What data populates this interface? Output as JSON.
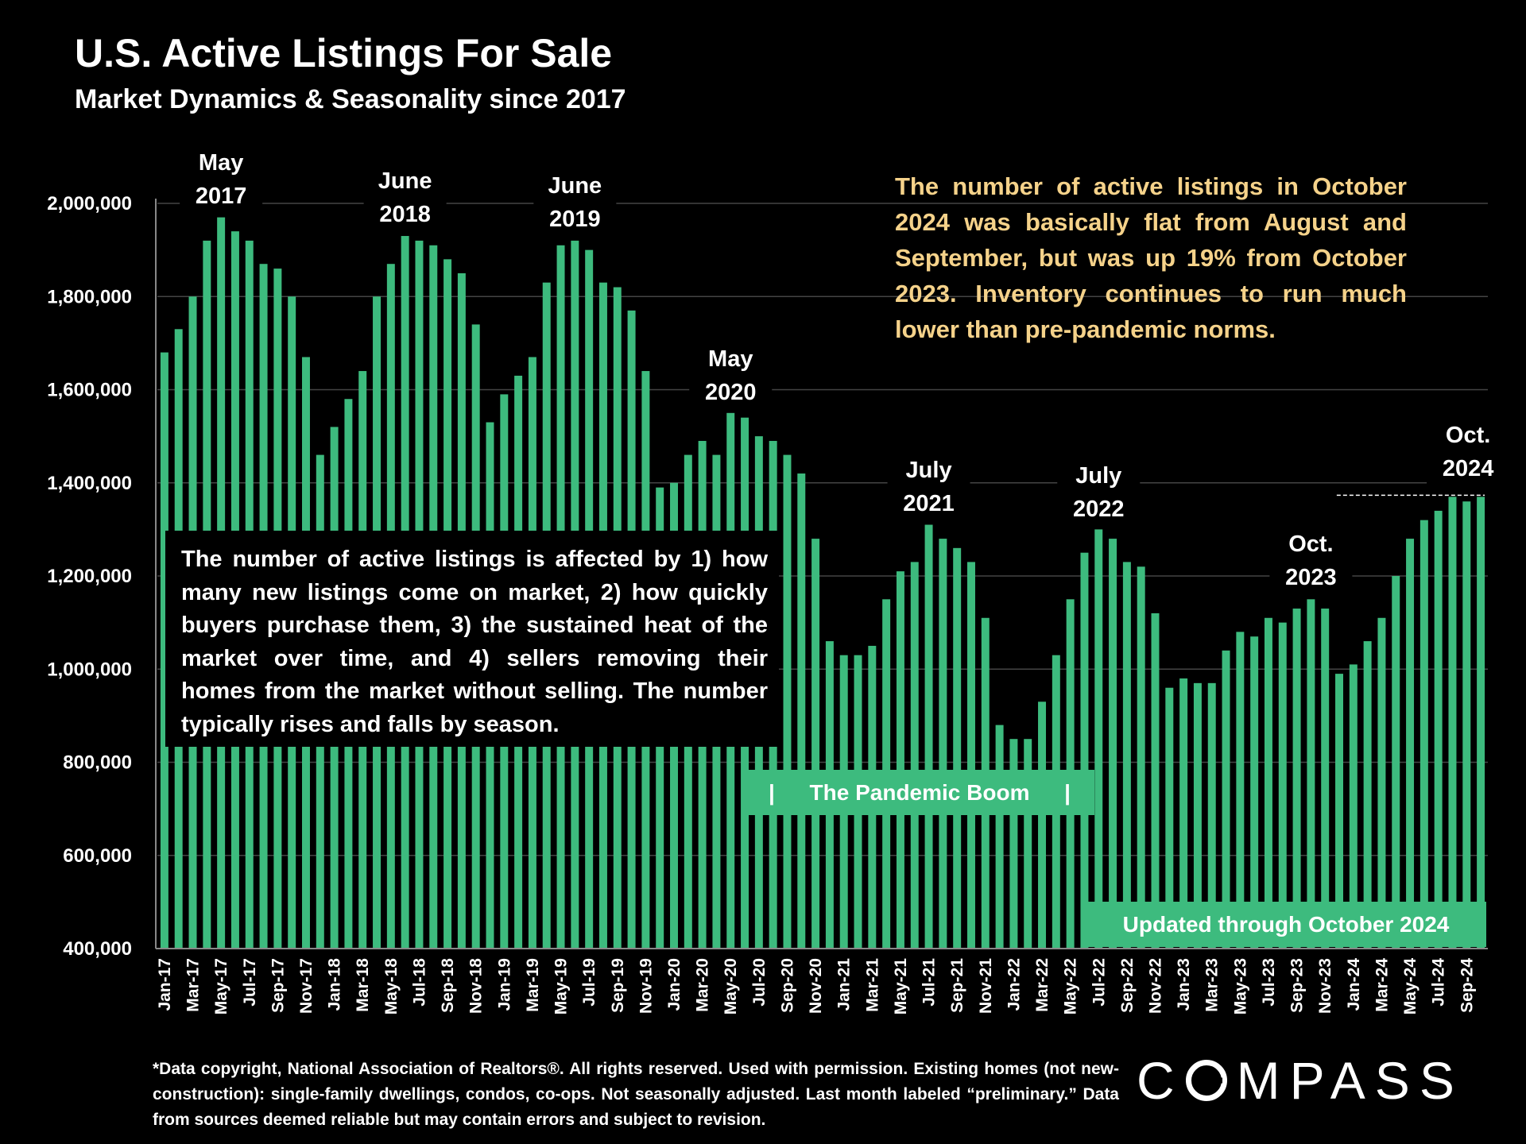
{
  "title": "U.S. Active Listings For Sale",
  "subtitle": "Market Dynamics & Seasonality since 2017",
  "notes": {
    "right": "The number of active listings in October 2024 was basically flat from August and September, but was up 19% from October 2023. Inventory continues to run much lower than pre-pandemic norms.",
    "left": "The number of active listings is affected by 1) how many new listings come on market, 2) how quickly buyers purchase them, 3) the sustained heat of the market over time, and 4) sellers removing their homes from the market without selling. The number typically rises and falls by season."
  },
  "bands": {
    "pandemic_bar": "|",
    "pandemic": "The Pandemic Boom",
    "updated": "Updated through October 2024"
  },
  "footnote": "*Data copyright, National Association of Realtors®. All rights reserved. Used with permission. Existing homes (not new-construction): single-family dwellings, condos, co-ops. Not seasonally adjusted. Last month labeled “preliminary.” Data from sources deemed reliable but may contain errors and subject to revision.",
  "logo": {
    "text": "COMPASS",
    "before": "C",
    "after": "MPASS"
  },
  "colors": {
    "bar": "#3dbb7e",
    "annotation": "#f5d28a",
    "background": "#000000",
    "grid": "#444444"
  },
  "chart_data": {
    "type": "bar",
    "ylim": [
      400000,
      2000000
    ],
    "yticks": [
      "400,000",
      "600,000",
      "800,000",
      "1,000,000",
      "1,200,000",
      "1,400,000",
      "1,600,000",
      "1,800,000",
      "2,000,000"
    ],
    "ytick_values": [
      400000,
      600000,
      800000,
      1000000,
      1200000,
      1400000,
      1600000,
      1800000,
      2000000
    ],
    "grid": true,
    "x": [
      "Jan-17",
      "Feb-17",
      "Mar-17",
      "Apr-17",
      "May-17",
      "Jun-17",
      "Jul-17",
      "Aug-17",
      "Sep-17",
      "Oct-17",
      "Nov-17",
      "Dec-17",
      "Jan-18",
      "Feb-18",
      "Mar-18",
      "Apr-18",
      "May-18",
      "Jun-18",
      "Jul-18",
      "Aug-18",
      "Sep-18",
      "Oct-18",
      "Nov-18",
      "Dec-18",
      "Jan-19",
      "Feb-19",
      "Mar-19",
      "Apr-19",
      "May-19",
      "Jun-19",
      "Jul-19",
      "Aug-19",
      "Sep-19",
      "Oct-19",
      "Nov-19",
      "Dec-19",
      "Jan-20",
      "Feb-20",
      "Mar-20",
      "Apr-20",
      "May-20",
      "Jun-20",
      "Jul-20",
      "Aug-20",
      "Sep-20",
      "Oct-20",
      "Nov-20",
      "Dec-20",
      "Jan-21",
      "Feb-21",
      "Mar-21",
      "Apr-21",
      "May-21",
      "Jun-21",
      "Jul-21",
      "Aug-21",
      "Sep-21",
      "Oct-21",
      "Nov-21",
      "Dec-21",
      "Jan-22",
      "Feb-22",
      "Mar-22",
      "Apr-22",
      "May-22",
      "Jun-22",
      "Jul-22",
      "Aug-22",
      "Sep-22",
      "Oct-22",
      "Nov-22",
      "Dec-22",
      "Jan-23",
      "Feb-23",
      "Mar-23",
      "Apr-23",
      "May-23",
      "Jun-23",
      "Jul-23",
      "Aug-23",
      "Sep-23",
      "Oct-23",
      "Nov-23",
      "Dec-23",
      "Jan-24",
      "Feb-24",
      "Mar-24",
      "Apr-24",
      "May-24",
      "Jun-24",
      "Jul-24",
      "Aug-24",
      "Sep-24",
      "Oct-24"
    ],
    "tick_labels": [
      "Jan-17",
      "Mar-17",
      "May-17",
      "Jul-17",
      "Sep-17",
      "Nov-17",
      "Jan-18",
      "Mar-18",
      "May-18",
      "Jul-18",
      "Sep-18",
      "Nov-18",
      "Jan-19",
      "Mar-19",
      "May-19",
      "Jul-19",
      "Sep-19",
      "Nov-19",
      "Jan-20",
      "Mar-20",
      "May-20",
      "Jul-20",
      "Sep-20",
      "Nov-20",
      "Jan-21",
      "Mar-21",
      "May-21",
      "Jul-21",
      "Sep-21",
      "Nov-21",
      "Jan-22",
      "Mar-22",
      "May-22",
      "Jul-22",
      "Sep-22",
      "Nov-22",
      "Jan-23",
      "Mar-23",
      "May-23",
      "Jul-23",
      "Sep-23",
      "Nov-23",
      "Jan-24",
      "Mar-24",
      "May-24",
      "Jul-24",
      "Sep-24"
    ],
    "values": [
      1680000,
      1730000,
      1800000,
      1920000,
      1970000,
      1940000,
      1920000,
      1870000,
      1860000,
      1800000,
      1670000,
      1460000,
      1520000,
      1580000,
      1640000,
      1800000,
      1870000,
      1930000,
      1920000,
      1910000,
      1880000,
      1850000,
      1740000,
      1530000,
      1590000,
      1630000,
      1670000,
      1830000,
      1910000,
      1920000,
      1900000,
      1830000,
      1820000,
      1770000,
      1640000,
      1390000,
      1400000,
      1460000,
      1490000,
      1460000,
      1550000,
      1540000,
      1500000,
      1490000,
      1460000,
      1420000,
      1280000,
      1060000,
      1030000,
      1030000,
      1050000,
      1150000,
      1210000,
      1230000,
      1310000,
      1280000,
      1260000,
      1230000,
      1110000,
      880000,
      850000,
      850000,
      930000,
      1030000,
      1150000,
      1250000,
      1300000,
      1280000,
      1230000,
      1220000,
      1120000,
      960000,
      980000,
      970000,
      970000,
      1040000,
      1080000,
      1070000,
      1110000,
      1100000,
      1130000,
      1150000,
      1130000,
      990000,
      1010000,
      1060000,
      1110000,
      1200000,
      1280000,
      1320000,
      1340000,
      1370000,
      1360000,
      1370000
    ],
    "annotations": [
      {
        "l1": "May",
        "l2": "2017",
        "at": "May-17"
      },
      {
        "l1": "June",
        "l2": "2018",
        "at": "Jun-18"
      },
      {
        "l1": "June",
        "l2": "2019",
        "at": "Jun-19"
      },
      {
        "l1": "May",
        "l2": "2020",
        "at": "May-20"
      },
      {
        "l1": "July",
        "l2": "2021",
        "at": "Jul-21"
      },
      {
        "l1": "July",
        "l2": "2022",
        "at": "Jul-22"
      },
      {
        "l1": "Oct.",
        "l2": "2023",
        "at": "Oct-23"
      },
      {
        "l1": "Oct.",
        "l2": "2024",
        "at": "Oct-24"
      }
    ],
    "reference_line": {
      "from": "Jun-24",
      "to": "Oct-24",
      "value": 1370000,
      "style": "dashed"
    }
  }
}
